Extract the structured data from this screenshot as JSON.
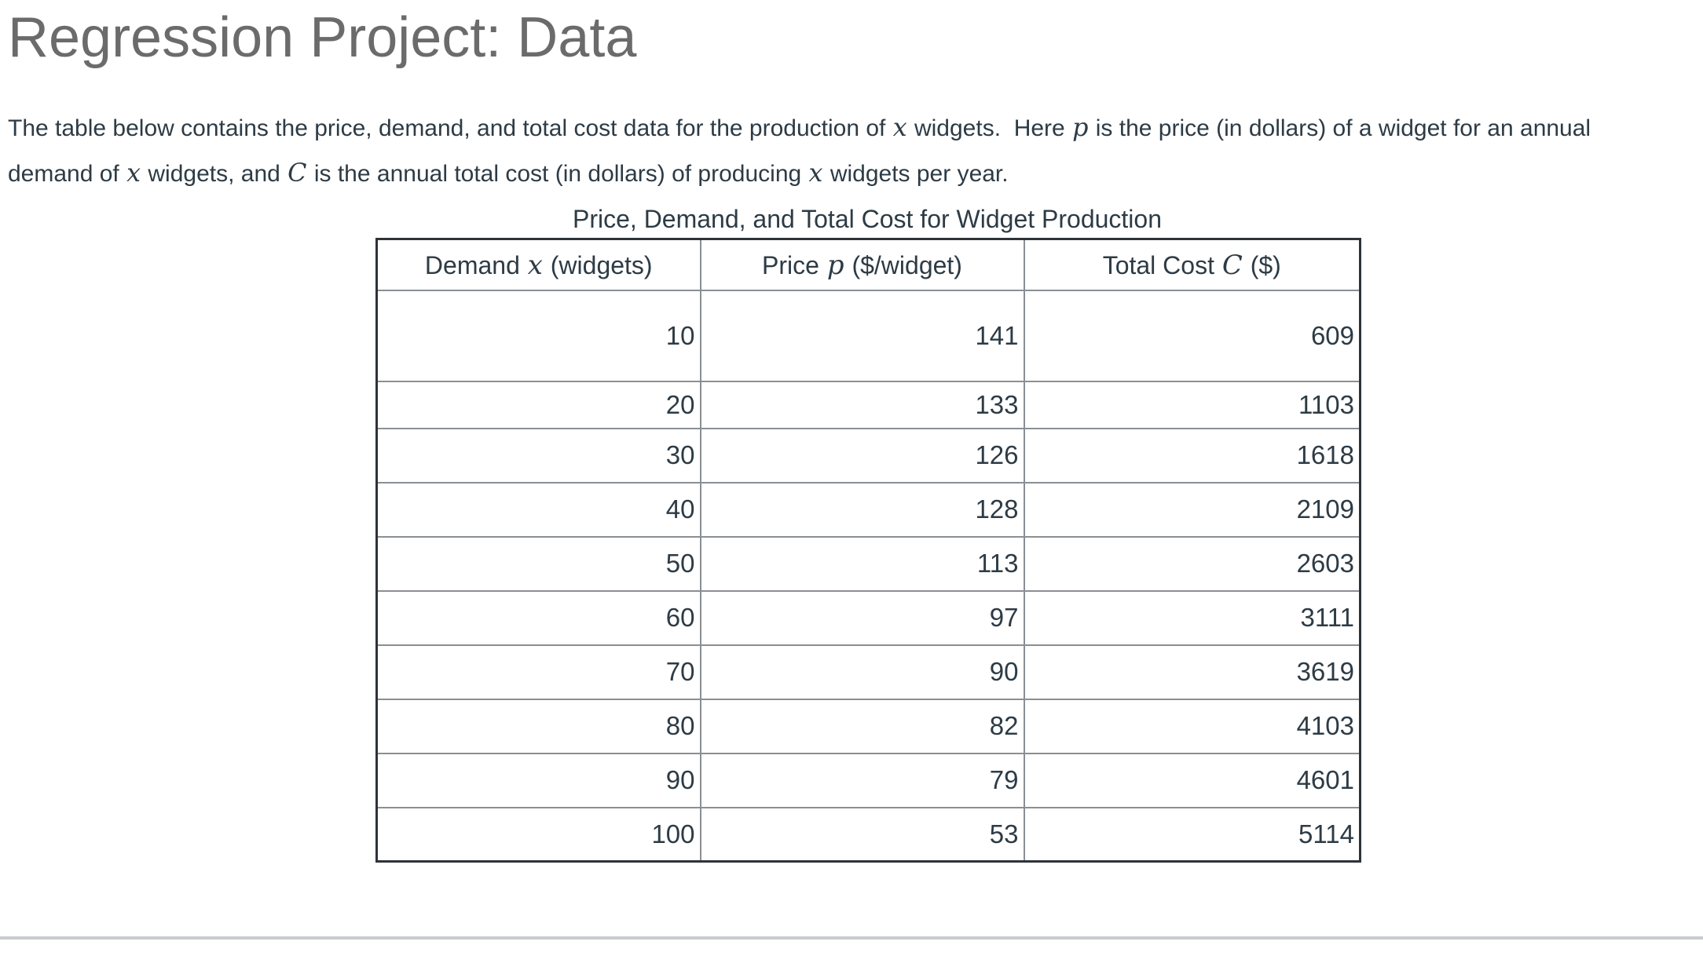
{
  "page": {
    "title": "Regression Project: Data",
    "intro_segments": [
      {
        "t": "text",
        "v": "The table below contains the price, demand, and total cost data for the production of "
      },
      {
        "t": "math",
        "v": "x"
      },
      {
        "t": "text",
        "v": " widgets.  Here "
      },
      {
        "t": "math",
        "v": "p"
      },
      {
        "t": "text",
        "v": " is the price (in dollars) of a widget for an annual"
      },
      {
        "t": "break"
      },
      {
        "t": "text",
        "v": "demand of "
      },
      {
        "t": "math",
        "v": "x"
      },
      {
        "t": "text",
        "v": " widgets, and "
      },
      {
        "t": "math",
        "v": "C"
      },
      {
        "t": "text",
        "v": " is the annual total cost (in dollars) of producing "
      },
      {
        "t": "math",
        "v": "x"
      },
      {
        "t": "text",
        "v": " widgets per year."
      }
    ]
  },
  "table": {
    "caption": "Price, Demand, and Total Cost for Widget Production",
    "columns": [
      {
        "segments": [
          {
            "t": "text",
            "v": "Demand "
          },
          {
            "t": "math",
            "v": "x"
          },
          {
            "t": "text",
            "v": " (widgets)"
          }
        ]
      },
      {
        "segments": [
          {
            "t": "text",
            "v": "Price "
          },
          {
            "t": "math",
            "v": "p"
          },
          {
            "t": "text",
            "v": " ($/widget)"
          }
        ]
      },
      {
        "segments": [
          {
            "t": "text",
            "v": "Total Cost "
          },
          {
            "t": "math",
            "v": "C"
          },
          {
            "t": "text",
            "v": " ($)"
          }
        ]
      }
    ],
    "rows": [
      [
        "10",
        "141",
        "609"
      ],
      [
        "20",
        "133",
        "1103"
      ],
      [
        "30",
        "126",
        "1618"
      ],
      [
        "40",
        "128",
        "2109"
      ],
      [
        "50",
        "113",
        "2603"
      ],
      [
        "60",
        "97",
        "3111"
      ],
      [
        "70",
        "90",
        "3619"
      ],
      [
        "80",
        "82",
        "4103"
      ],
      [
        "90",
        "79",
        "4601"
      ],
      [
        "100",
        "53",
        "5114"
      ]
    ]
  },
  "chart_data": {
    "type": "table",
    "title": "Price, Demand, and Total Cost for Widget Production",
    "columns": [
      "Demand x (widgets)",
      "Price p ($/widget)",
      "Total Cost C ($)"
    ],
    "rows": [
      [
        10,
        141,
        609
      ],
      [
        20,
        133,
        1103
      ],
      [
        30,
        126,
        1618
      ],
      [
        40,
        128,
        2109
      ],
      [
        50,
        113,
        2603
      ],
      [
        60,
        97,
        3111
      ],
      [
        70,
        90,
        3619
      ],
      [
        80,
        82,
        4103
      ],
      [
        90,
        79,
        4601
      ],
      [
        100,
        53,
        5114
      ]
    ]
  },
  "colors": {
    "body_text": "#2D3B45",
    "title_text": "#6b6b6b",
    "table_outer_border": "#2e3338",
    "table_inner_border": "#8a8f94",
    "divider": "#c8ccd1",
    "background": "#ffffff"
  }
}
